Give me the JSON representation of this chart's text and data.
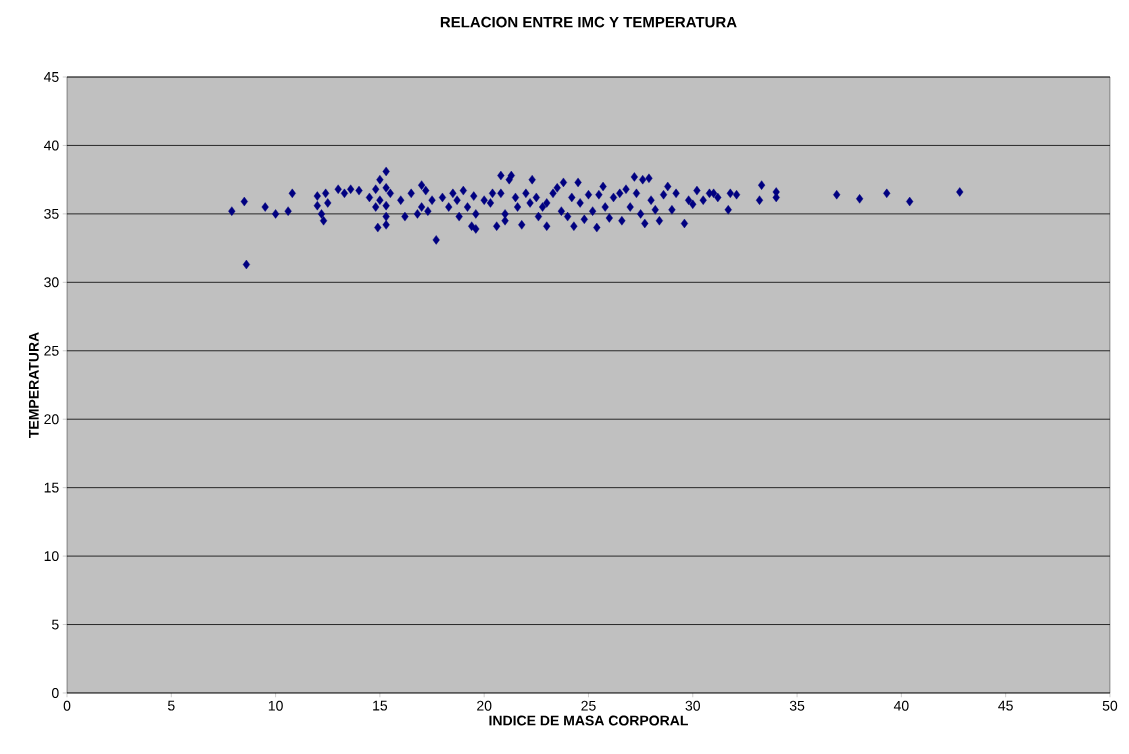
{
  "chart_data": {
    "type": "scatter",
    "title": "RELACION ENTRE IMC Y TEMPERATURA",
    "xlabel": "INDICE DE MASA CORPORAL",
    "ylabel": "TEMPERATURA",
    "xlim": [
      0,
      50
    ],
    "xticks": [
      0,
      5,
      10,
      15,
      20,
      25,
      30,
      35,
      40,
      45,
      50
    ],
    "ylim": [
      0,
      45
    ],
    "yticks": [
      0,
      5,
      10,
      15,
      20,
      25,
      30,
      35,
      40,
      45
    ],
    "grid": "y",
    "marker": "diamond",
    "series": [
      {
        "color": "#000080",
        "x": [
          7.9,
          8.5,
          8.6,
          9.5,
          10,
          10.6,
          10.8,
          12,
          12,
          12.2,
          12.3,
          12.4,
          12.5,
          13,
          13.3,
          13.6,
          14,
          14.5,
          14.8,
          14.8,
          14.9,
          15,
          15,
          15.3,
          15.3,
          15.3,
          15.3,
          15.3,
          15.5,
          16,
          16.2,
          16.5,
          16.8,
          17,
          17,
          17.2,
          17.3,
          17.5,
          17.7,
          18,
          18.3,
          18.5,
          18.7,
          18.8,
          19,
          19.2,
          19.4,
          19.5,
          19.6,
          19.6,
          20,
          20.3,
          20.4,
          20.6,
          20.8,
          20.8,
          21,
          21,
          21.2,
          21.3,
          21.5,
          21.6,
          21.8,
          22,
          22.2,
          22.3,
          22.5,
          22.6,
          22.8,
          23,
          23,
          23.3,
          23.5,
          23.7,
          23.8,
          24,
          24.2,
          24.3,
          24.5,
          24.6,
          24.8,
          25,
          25.2,
          25.4,
          25.5,
          25.7,
          25.8,
          26,
          26.2,
          26.5,
          26.6,
          26.8,
          27,
          27.2,
          27.3,
          27.5,
          27.6,
          27.7,
          27.9,
          28,
          28.2,
          28.4,
          28.6,
          28.8,
          29,
          29.2,
          29.6,
          29.8,
          30,
          30.2,
          30.5,
          30.8,
          31,
          31.2,
          31.7,
          31.8,
          32.1,
          33.2,
          33.3,
          34,
          34,
          36.9,
          38,
          39.3,
          40.4,
          42.8
        ],
        "values": [
          35.2,
          35.9,
          31.3,
          35.5,
          35,
          35.2,
          36.5,
          36.3,
          35.6,
          35,
          34.5,
          36.5,
          35.8,
          36.8,
          36.5,
          36.8,
          36.7,
          36.2,
          36.8,
          35.5,
          34,
          37.5,
          36,
          38.1,
          36.9,
          35.6,
          34.8,
          34.2,
          36.5,
          36,
          34.8,
          36.5,
          35,
          37.1,
          35.5,
          36.7,
          35.2,
          36,
          33.1,
          36.2,
          35.5,
          36.5,
          36,
          34.8,
          36.7,
          35.5,
          34.1,
          36.3,
          33.9,
          35,
          36,
          35.8,
          36.5,
          34.1,
          37.8,
          36.5,
          35,
          34.5,
          37.5,
          37.8,
          36.2,
          35.5,
          34.2,
          36.5,
          35.8,
          37.5,
          36.2,
          34.8,
          35.5,
          34.1,
          35.8,
          36.5,
          36.9,
          35.2,
          37.3,
          34.8,
          36.2,
          34.1,
          37.3,
          35.8,
          34.6,
          36.4,
          35.2,
          34,
          36.4,
          37,
          35.5,
          34.7,
          36.2,
          36.5,
          34.5,
          36.8,
          35.5,
          37.7,
          36.5,
          35,
          37.5,
          34.3,
          37.6,
          36,
          35.3,
          34.5,
          36.4,
          37,
          35.3,
          36.5,
          34.3,
          36,
          35.7,
          36.7,
          36,
          36.5,
          36.5,
          36.2,
          35.3,
          36.5,
          36.4,
          36,
          37.1,
          36.2,
          36.6,
          36.4,
          36.1,
          36.5,
          35.9,
          36.6
        ]
      }
    ]
  }
}
